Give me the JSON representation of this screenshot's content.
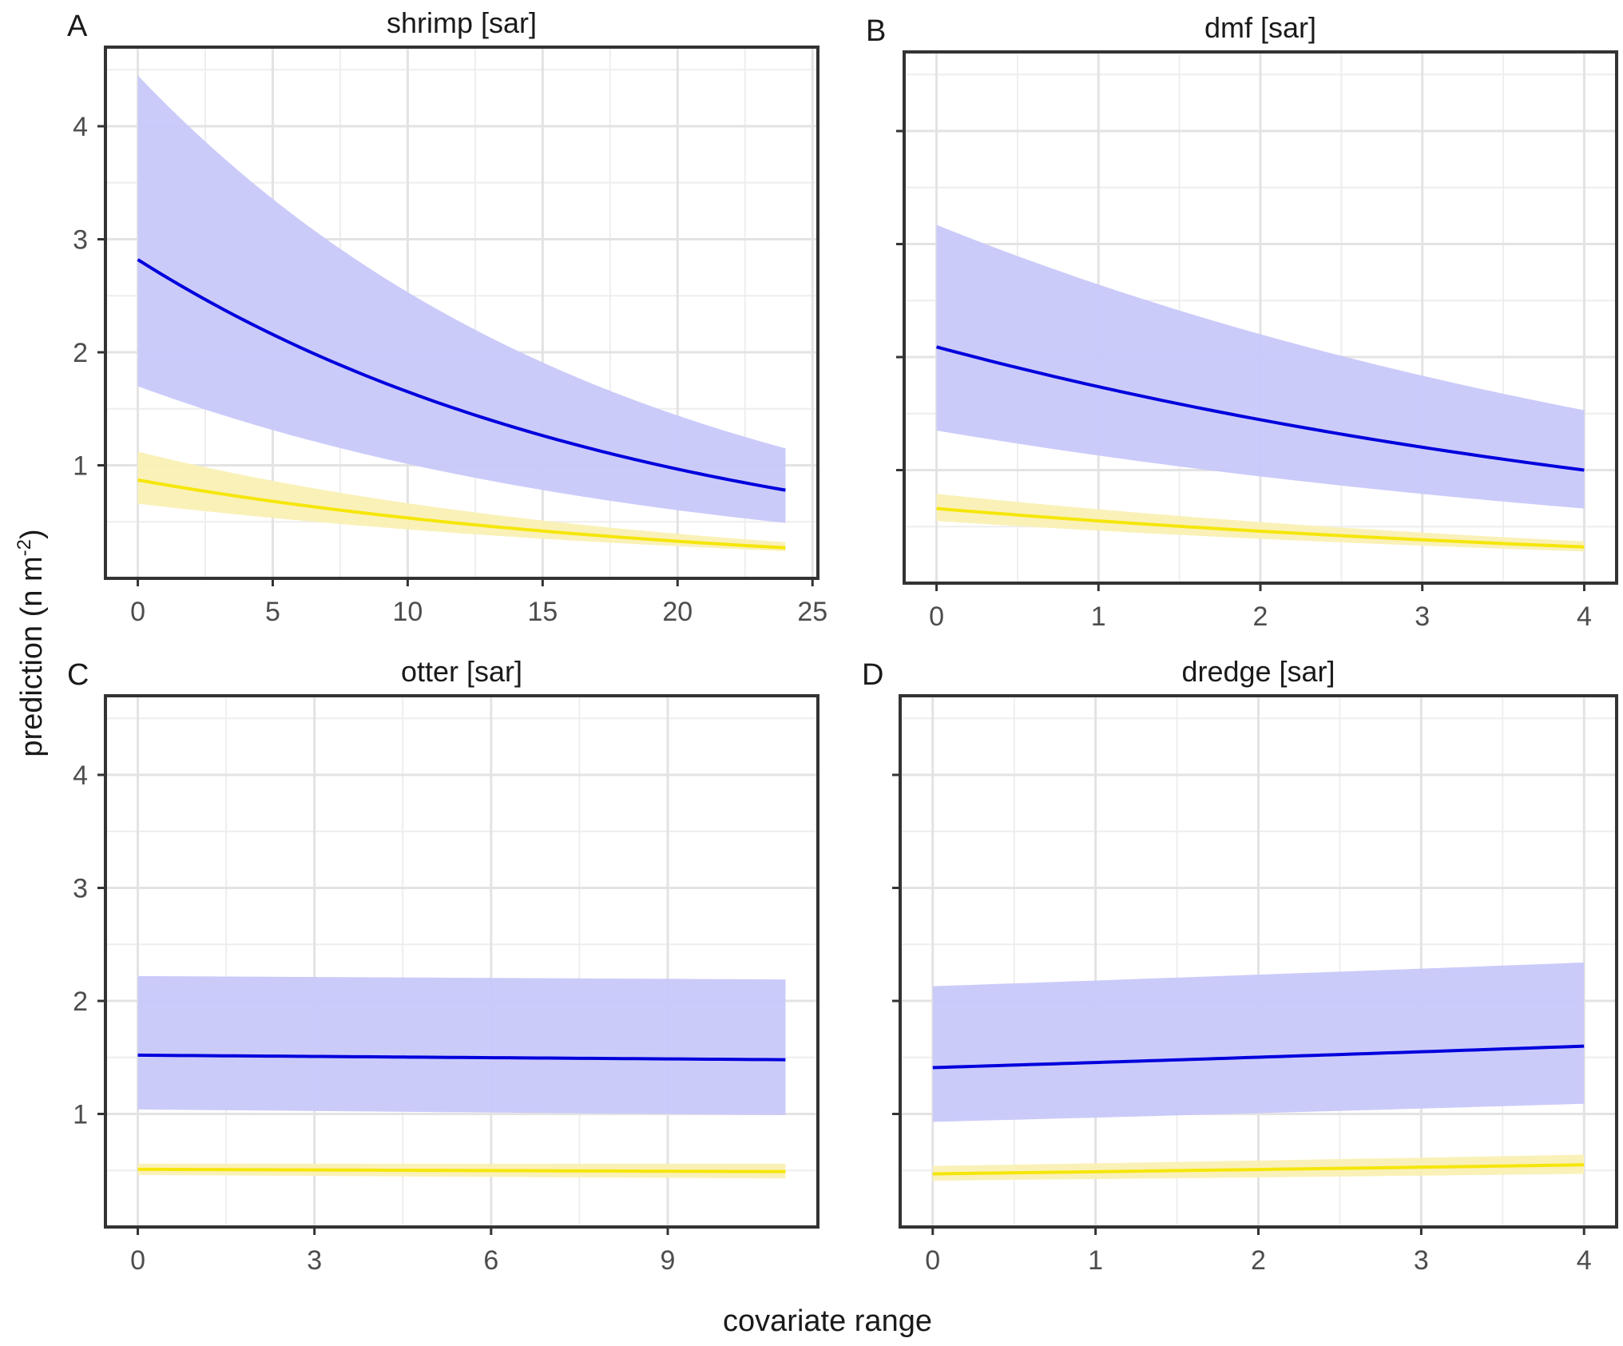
{
  "figure": {
    "xlabel": "covariate range",
    "ylabel": "prediction (n m",
    "ylabel_sup": "-2",
    "ylabel_end": ")"
  },
  "chart_data": [
    {
      "type": "line",
      "tag": "A",
      "title": "shrimp [sar]",
      "xlim": [
        -1.2,
        25.2
      ],
      "ylim": [
        0,
        4.7
      ],
      "xticks": [
        0,
        5,
        10,
        15,
        20,
        25
      ],
      "yticks": [
        1,
        2,
        3,
        4
      ],
      "show_ytick_labels": true,
      "colors": {
        "blue": "#0000dd",
        "blue_band": "#c8c8fa",
        "yellow": "#f5e60a",
        "yellow_band": "#faf0b4"
      },
      "series": [
        {
          "name": "blue",
          "x": [
            0,
            24
          ],
          "y": [
            2.82,
            0.78
          ],
          "lower": [
            1.7,
            0.49
          ],
          "upper": [
            4.45,
            1.15
          ]
        },
        {
          "name": "yellow",
          "x": [
            0,
            24
          ],
          "y": [
            0.87,
            0.27
          ],
          "lower": [
            0.66,
            0.24
          ],
          "upper": [
            1.12,
            0.32
          ]
        }
      ]
    },
    {
      "type": "line",
      "tag": "B",
      "title": "dmf [sar]",
      "xlim": [
        -0.2,
        4.2
      ],
      "ylim": [
        0,
        4.7
      ],
      "xticks": [
        0,
        1,
        2,
        3,
        4
      ],
      "yticks": [
        1,
        2,
        3,
        4
      ],
      "show_ytick_labels": false,
      "colors": {
        "blue": "#0000dd",
        "blue_band": "#c8c8fa",
        "yellow": "#f5e60a",
        "yellow_band": "#faf0b4"
      },
      "series": [
        {
          "name": "blue",
          "x": [
            0,
            4
          ],
          "y": [
            2.09,
            1.0
          ],
          "lower": [
            1.35,
            0.66
          ],
          "upper": [
            3.17,
            1.53
          ]
        },
        {
          "name": "yellow",
          "x": [
            0,
            4
          ],
          "y": [
            0.66,
            0.32
          ],
          "lower": [
            0.55,
            0.28
          ],
          "upper": [
            0.79,
            0.37
          ]
        }
      ]
    },
    {
      "type": "line",
      "tag": "C",
      "title": "otter [sar]",
      "xlim": [
        -0.55,
        11.55
      ],
      "ylim": [
        0,
        4.7
      ],
      "xticks": [
        0,
        3,
        6,
        9
      ],
      "yticks": [
        1,
        2,
        3,
        4
      ],
      "show_ytick_labels": true,
      "colors": {
        "blue": "#0000dd",
        "blue_band": "#c8c8fa",
        "yellow": "#f5e60a",
        "yellow_band": "#faf0b4"
      },
      "series": [
        {
          "name": "blue",
          "x": [
            0,
            11
          ],
          "y": [
            1.52,
            1.48
          ],
          "lower": [
            1.04,
            0.99
          ],
          "upper": [
            2.22,
            2.19
          ]
        },
        {
          "name": "yellow",
          "x": [
            0,
            11
          ],
          "y": [
            0.51,
            0.49
          ],
          "lower": [
            0.46,
            0.43
          ],
          "upper": [
            0.56,
            0.56
          ]
        }
      ]
    },
    {
      "type": "line",
      "tag": "D",
      "title": "dredge [sar]",
      "xlim": [
        -0.2,
        4.2
      ],
      "ylim": [
        0,
        4.7
      ],
      "xticks": [
        0,
        1,
        2,
        3,
        4
      ],
      "yticks": [
        1,
        2,
        3,
        4
      ],
      "show_ytick_labels": false,
      "colors": {
        "blue": "#0000dd",
        "blue_band": "#c8c8fa",
        "yellow": "#f5e60a",
        "yellow_band": "#faf0b4"
      },
      "series": [
        {
          "name": "blue",
          "x": [
            0,
            4
          ],
          "y": [
            1.41,
            1.6
          ],
          "lower": [
            0.93,
            1.09
          ],
          "upper": [
            2.13,
            2.34
          ]
        },
        {
          "name": "yellow",
          "x": [
            0,
            4
          ],
          "y": [
            0.47,
            0.55
          ],
          "lower": [
            0.41,
            0.47
          ],
          "upper": [
            0.54,
            0.64
          ]
        }
      ]
    }
  ]
}
